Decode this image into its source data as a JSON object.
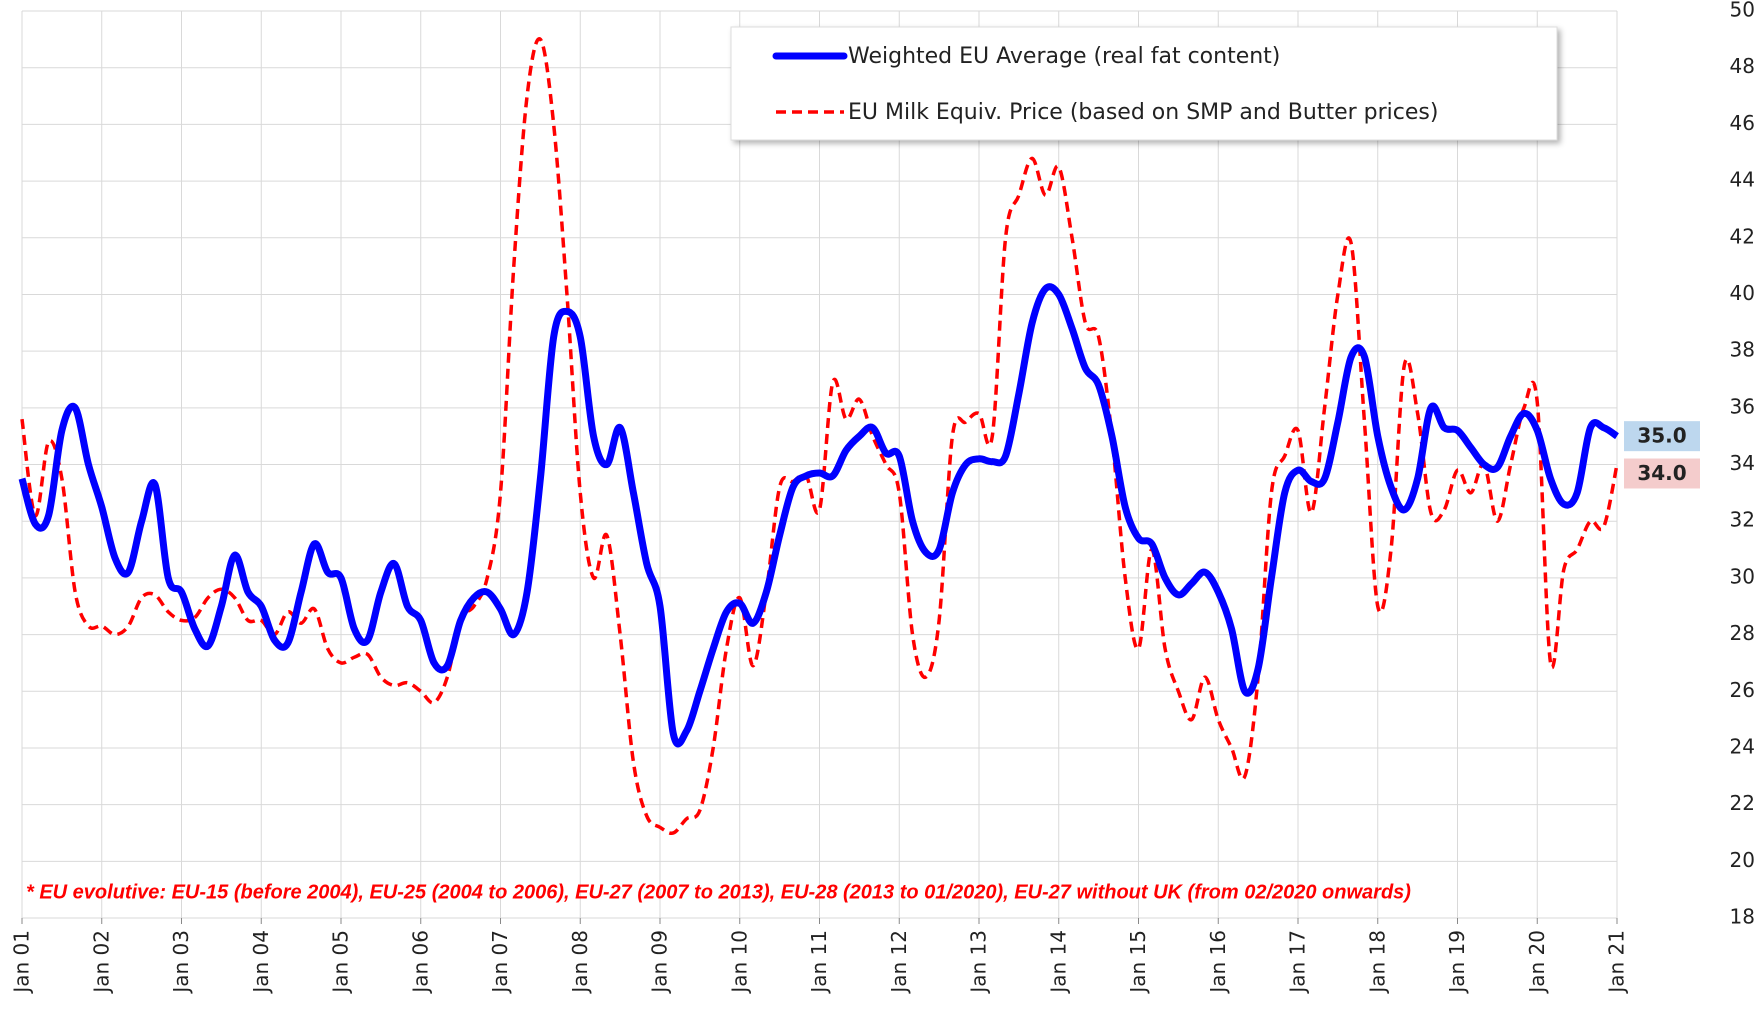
{
  "chart_data": {
    "type": "line",
    "categories": [
      "Jan 01",
      null,
      null,
      null,
      null,
      null,
      "Jan 02",
      null,
      null,
      null,
      null,
      null,
      "Jan 03",
      null,
      null,
      null,
      null,
      null,
      "Jan 04",
      null,
      null,
      null,
      null,
      null,
      "Jan 05",
      null,
      null,
      null,
      null,
      null,
      "Jan 06",
      null,
      null,
      null,
      null,
      null,
      "Jan 07",
      null,
      null,
      null,
      null,
      null,
      "Jan 08",
      null,
      null,
      null,
      null,
      null,
      "Jan 09",
      null,
      null,
      null,
      null,
      null,
      "Jan 10",
      null,
      null,
      null,
      null,
      null,
      "Jan 11",
      null,
      null,
      null,
      null,
      null,
      "Jan 12",
      null,
      null,
      null,
      null,
      null,
      "Jan 13",
      null,
      null,
      null,
      null,
      null,
      "Jan 14",
      null,
      null,
      null,
      null,
      null,
      "Jan 15",
      null,
      null,
      null,
      null,
      null,
      "Jan 16",
      null,
      null,
      null,
      null,
      null,
      "Jan 17",
      null,
      null,
      null,
      null,
      null,
      "Jan 18",
      null,
      null,
      null,
      null,
      null,
      "Jan 19",
      null,
      null,
      null,
      null,
      null,
      "Jan 20",
      null,
      null,
      null,
      null,
      null,
      "Jan 21"
    ],
    "series": [
      {
        "name": "Weighted EU Average (real fat content)",
        "color": "#0000ff",
        "dashed": false,
        "end_label": "35.0",
        "end_label_bg": "#bdd7ee",
        "values": [
          33.5,
          31.9,
          32.2,
          35.2,
          36.0,
          34.0,
          32.5,
          30.7,
          30.2,
          32.0,
          33.3,
          30.0,
          29.5,
          28.2,
          27.6,
          29.0,
          30.8,
          29.5,
          29.0,
          27.8,
          27.7,
          29.5,
          31.2,
          30.2,
          30.0,
          28.2,
          27.8,
          29.5,
          30.5,
          29.0,
          28.5,
          27.0,
          26.9,
          28.5,
          29.3,
          29.5,
          28.9,
          28.0,
          29.5,
          33.5,
          38.5,
          39.4,
          38.5,
          35.0,
          34.0,
          35.3,
          33.0,
          30.5,
          29.0,
          24.5,
          24.6,
          26.0,
          27.5,
          28.8,
          29.1,
          28.4,
          29.5,
          31.5,
          33.2,
          33.6,
          33.7,
          33.6,
          34.5,
          35.0,
          35.3,
          34.4,
          34.3,
          32.0,
          30.9,
          31.0,
          33.0,
          34.0,
          34.2,
          34.1,
          34.3,
          36.5,
          39.0,
          40.2,
          40.0,
          38.8,
          37.4,
          36.8,
          35.0,
          32.5,
          31.4,
          31.2,
          30.0,
          29.4,
          29.8,
          30.2,
          29.5,
          28.2,
          26.0,
          26.8,
          30.0,
          33.0,
          33.8,
          33.4,
          33.5,
          35.5,
          37.8,
          37.8,
          35.0,
          33.2,
          32.4,
          33.5,
          36.0,
          35.3,
          35.2,
          34.6,
          34.0,
          33.9,
          35.0,
          35.8,
          35.2,
          33.5,
          32.6,
          33.0,
          35.3,
          35.3,
          35.0
        ]
      },
      {
        "name": "EU Milk Equiv. Price (based on SMP and Butter prices)",
        "color": "#ff0000",
        "dashed": true,
        "end_label": "34.0",
        "end_label_bg": "#f4cccc",
        "values": [
          35.6,
          32.2,
          34.8,
          33.5,
          29.5,
          28.3,
          28.3,
          28.0,
          28.3,
          29.3,
          29.4,
          28.8,
          28.5,
          28.6,
          29.3,
          29.6,
          29.3,
          28.5,
          28.5,
          28.0,
          28.8,
          28.4,
          28.9,
          27.5,
          27.0,
          27.2,
          27.3,
          26.5,
          26.2,
          26.3,
          26.0,
          25.6,
          26.5,
          28.5,
          29.0,
          30.0,
          33.0,
          41.0,
          47.0,
          49.0,
          46.0,
          40.0,
          33.0,
          30.0,
          31.5,
          28.0,
          23.5,
          21.6,
          21.2,
          21.0,
          21.5,
          21.8,
          24.0,
          27.5,
          29.3,
          26.9,
          29.5,
          33.2,
          33.4,
          33.6,
          32.4,
          36.9,
          35.6,
          36.3,
          35.0,
          34.0,
          33.0,
          28.0,
          26.5,
          28.5,
          35.0,
          35.5,
          35.8,
          35.0,
          42.0,
          43.5,
          44.8,
          43.5,
          44.5,
          42.0,
          39.0,
          38.5,
          35.0,
          30.0,
          27.5,
          31.0,
          27.5,
          26.0,
          25.0,
          26.5,
          25.0,
          24.0,
          23.0,
          26.5,
          33.0,
          34.3,
          35.2,
          32.3,
          36.0,
          40.0,
          41.8,
          35.5,
          29.0,
          31.0,
          37.5,
          35.8,
          32.3,
          32.4,
          33.8,
          33.0,
          34.0,
          32.0,
          34.0,
          36.0,
          36.2,
          27.0,
          30.3,
          31.0,
          32.0,
          31.8,
          34.0
        ]
      }
    ],
    "ylim": [
      18,
      50
    ],
    "yticks": [
      18,
      20,
      22,
      24,
      26,
      28,
      30,
      32,
      34,
      36,
      38,
      40,
      42,
      44,
      46,
      48,
      50
    ],
    "grid": true,
    "y_axis_side": "right",
    "legend": "top",
    "footnote": "* EU evolutive: EU-15 (before 2004), EU-25 (2004 to 2006), EU-27 (2007 to 2013), EU-28 (2013 to 01/2020), EU-27 without UK (from 02/2020 onwards)"
  }
}
